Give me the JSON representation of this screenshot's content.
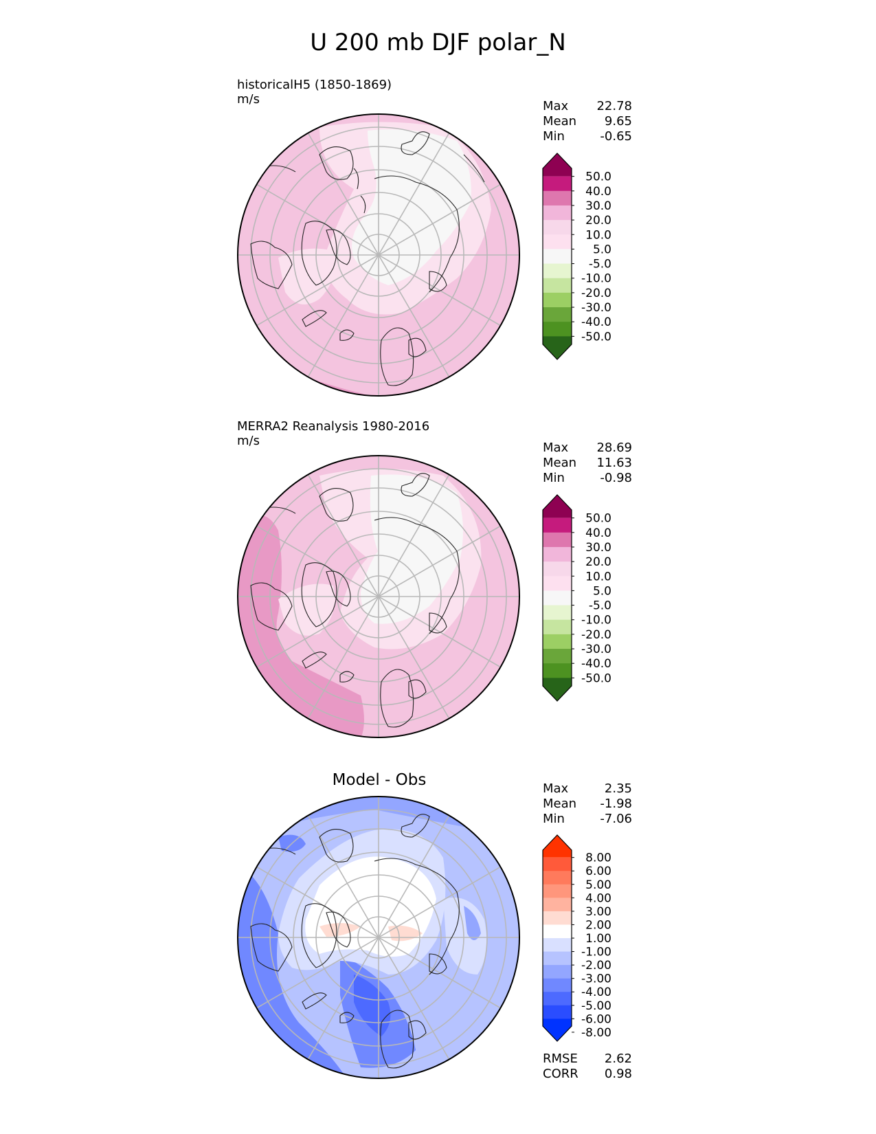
{
  "title": "U 200 mb DJF polar_N",
  "colors": {
    "seq": [
      "#8e0152",
      "#c51b7d",
      "#de77ae",
      "#f1b6da",
      "#f7d8ea",
      "#fde0ef",
      "#f7f7f7",
      "#e6f5d0",
      "#c6e5a0",
      "#9ccf64",
      "#6aa63a",
      "#4d9221",
      "#276419"
    ],
    "div": [
      "#ff3300",
      "#ff5a3a",
      "#ff7a5c",
      "#ff967c",
      "#ffb39f",
      "#ffdcd2",
      "#ffffff",
      "#d9e0ff",
      "#b6c3ff",
      "#93a6ff",
      "#7088ff",
      "#4d6aff",
      "#2a4dff",
      "#0033ff"
    ]
  },
  "panels": [
    {
      "id": "test",
      "label": "historicalH5 (1850-1869)",
      "units": "m/s",
      "stats": [
        {
          "name": "Max",
          "value": "22.78"
        },
        {
          "name": "Mean",
          "value": "9.65"
        },
        {
          "name": "Min",
          "value": "-0.65"
        }
      ],
      "colorbar": {
        "palette": "seq",
        "ticks": [
          "50.0",
          "40.0",
          "30.0",
          "20.0",
          "10.0",
          "5.0",
          "-5.0",
          "-10.0",
          "-20.0",
          "-30.0",
          "-40.0",
          "-50.0"
        ]
      }
    },
    {
      "id": "ref",
      "label": "MERRA2 Reanalysis 1980-2016",
      "units": "m/s",
      "stats": [
        {
          "name": "Max",
          "value": "28.69"
        },
        {
          "name": "Mean",
          "value": "11.63"
        },
        {
          "name": "Min",
          "value": "-0.98"
        }
      ],
      "colorbar": {
        "palette": "seq",
        "ticks": [
          "50.0",
          "40.0",
          "30.0",
          "20.0",
          "10.0",
          "5.0",
          "-5.0",
          "-10.0",
          "-20.0",
          "-30.0",
          "-40.0",
          "-50.0"
        ]
      }
    },
    {
      "id": "diff",
      "label": "Model - Obs",
      "units": "",
      "stats": [
        {
          "name": "Max",
          "value": "2.35"
        },
        {
          "name": "Mean",
          "value": "-1.98"
        },
        {
          "name": "Min",
          "value": "-7.06"
        }
      ],
      "colorbar": {
        "palette": "div",
        "ticks": [
          "8.00",
          "6.00",
          "5.00",
          "4.00",
          "3.00",
          "2.00",
          "1.00",
          "-1.00",
          "-2.00",
          "-3.00",
          "-4.00",
          "-5.00",
          "-6.00",
          "-8.00"
        ]
      },
      "metrics": [
        {
          "name": "RMSE",
          "value": "2.62"
        },
        {
          "name": "CORR",
          "value": "0.98"
        }
      ]
    }
  ]
}
